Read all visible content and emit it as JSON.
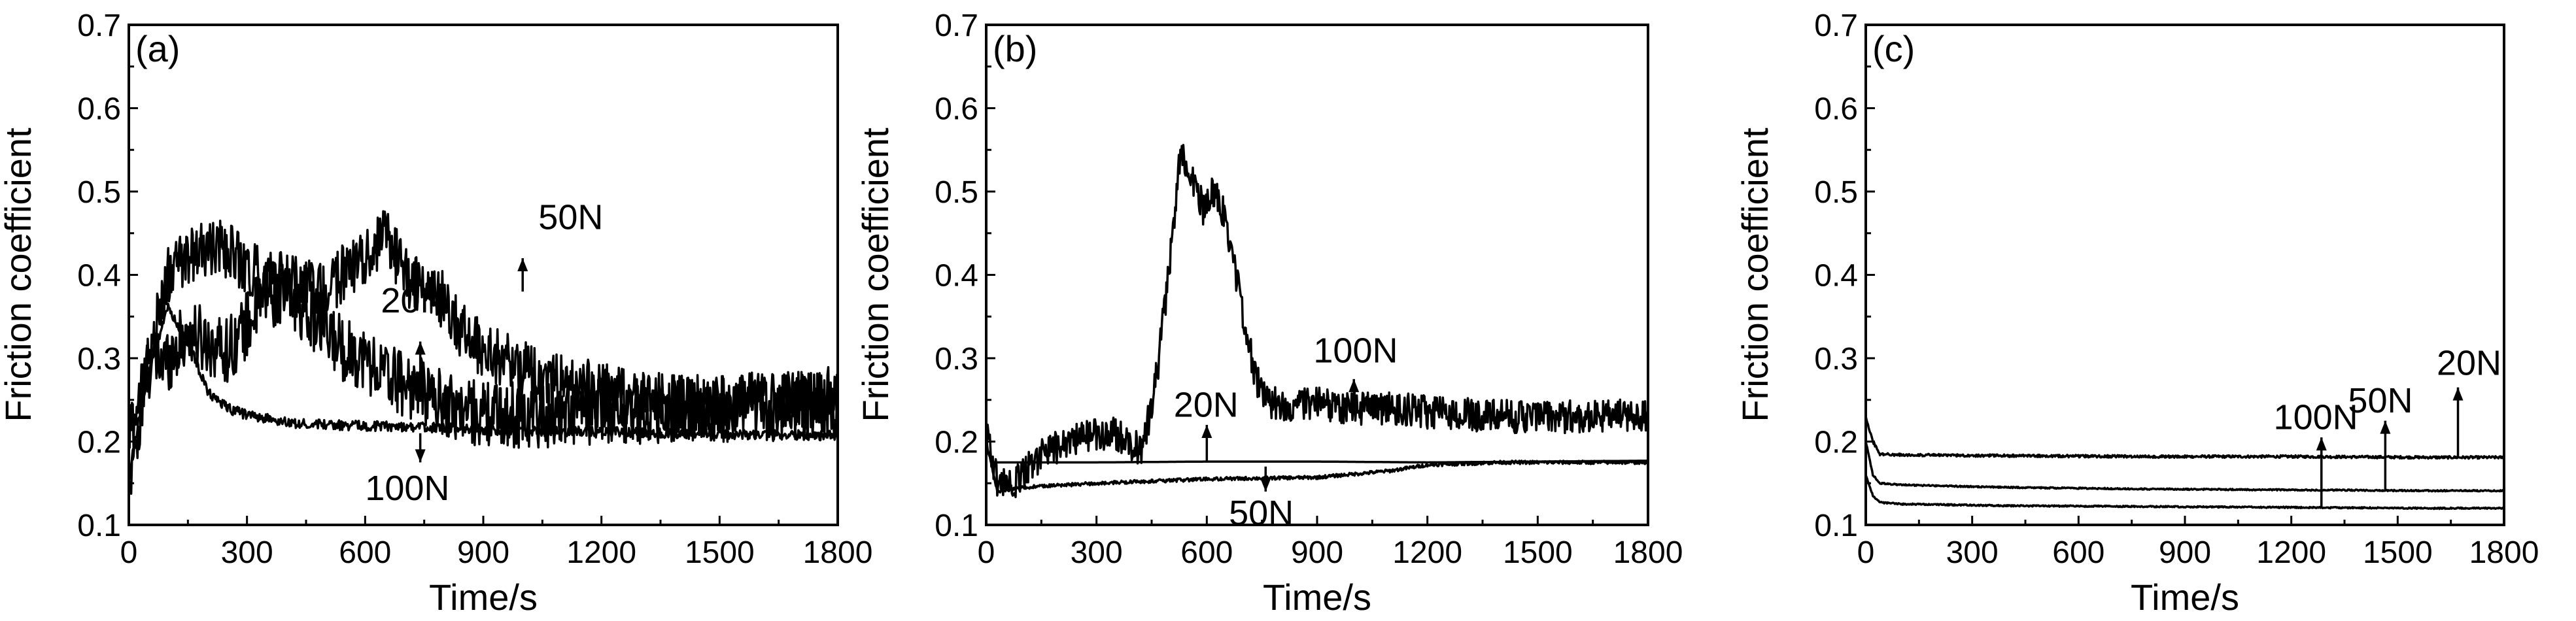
{
  "figure": {
    "background": "#ffffff",
    "line_color": "#000000"
  },
  "chart_data": [
    {
      "type": "line",
      "panel_label": "(a)",
      "xlabel": "Time/s",
      "ylabel": "Friction coefficient",
      "xlim": [
        0,
        1800
      ],
      "ylim": [
        0.1,
        0.7
      ],
      "xticks": [
        "0",
        "300",
        "600",
        "900",
        "1200",
        "1500",
        "1800"
      ],
      "yticks": [
        "0.1",
        "0.2",
        "0.3",
        "0.4",
        "0.5",
        "0.6",
        "0.7"
      ],
      "series": [
        {
          "label": "20N",
          "points": [
            [
              0,
              0.21
            ],
            [
              50,
              0.29
            ],
            [
              100,
              0.3
            ],
            [
              150,
              0.33
            ],
            [
              200,
              0.32
            ],
            [
              250,
              0.31
            ],
            [
              300,
              0.34
            ],
            [
              350,
              0.38
            ],
            [
              400,
              0.37
            ],
            [
              450,
              0.36
            ],
            [
              500,
              0.33
            ],
            [
              550,
              0.31
            ],
            [
              600,
              0.3
            ],
            [
              650,
              0.28
            ],
            [
              700,
              0.27
            ],
            [
              750,
              0.26
            ],
            [
              800,
              0.245
            ],
            [
              850,
              0.238
            ],
            [
              900,
              0.233
            ],
            [
              1000,
              0.232
            ],
            [
              1200,
              0.235
            ],
            [
              1400,
              0.238
            ],
            [
              1600,
              0.24
            ],
            [
              1800,
              0.243
            ]
          ],
          "noise": 0.04
        },
        {
          "label": "50N",
          "points": [
            [
              0,
              0.14
            ],
            [
              50,
              0.3
            ],
            [
              100,
              0.4
            ],
            [
              150,
              0.42
            ],
            [
              200,
              0.43
            ],
            [
              250,
              0.43
            ],
            [
              300,
              0.41
            ],
            [
              400,
              0.39
            ],
            [
              500,
              0.38
            ],
            [
              560,
              0.41
            ],
            [
              600,
              0.42
            ],
            [
              650,
              0.45
            ],
            [
              700,
              0.4
            ],
            [
              750,
              0.38
            ],
            [
              800,
              0.37
            ],
            [
              850,
              0.33
            ],
            [
              900,
              0.31
            ],
            [
              950,
              0.3
            ],
            [
              1000,
              0.29
            ],
            [
              1100,
              0.27
            ],
            [
              1200,
              0.26
            ],
            [
              1300,
              0.25
            ],
            [
              1400,
              0.245
            ],
            [
              1500,
              0.245
            ],
            [
              1600,
              0.25
            ],
            [
              1800,
              0.255
            ]
          ],
          "noise": 0.035
        },
        {
          "label": "100N",
          "points": [
            [
              0,
              0.15
            ],
            [
              30,
              0.24
            ],
            [
              60,
              0.3
            ],
            [
              100,
              0.36
            ],
            [
              150,
              0.32
            ],
            [
              200,
              0.26
            ],
            [
              250,
              0.24
            ],
            [
              300,
              0.232
            ],
            [
              400,
              0.223
            ],
            [
              500,
              0.22
            ],
            [
              700,
              0.218
            ],
            [
              1000,
              0.213
            ],
            [
              1400,
              0.21
            ],
            [
              1800,
              0.207
            ]
          ],
          "noise": 0.006
        }
      ],
      "annotations": [
        {
          "text": "50N",
          "arrow_x": 1000,
          "arrow_from_y": 0.38,
          "arrow_to_y": 0.42,
          "label_x": 1040,
          "label_y": 0.455
        },
        {
          "text": "20N",
          "arrow_x": 740,
          "arrow_from_y": 0.275,
          "arrow_to_y": 0.32,
          "label_x": 640,
          "label_y": 0.355
        },
        {
          "text": "100N",
          "arrow_x": 740,
          "arrow_from_y": 0.21,
          "arrow_to_y": 0.175,
          "label_x": 600,
          "label_y": 0.13
        }
      ]
    },
    {
      "type": "line",
      "panel_label": "(b)",
      "xlabel": "Time/s",
      "ylabel": "Friction coefficient",
      "xlim": [
        0,
        1800
      ],
      "ylim": [
        0.1,
        0.7
      ],
      "xticks": [
        "0",
        "300",
        "600",
        "900",
        "1200",
        "1500",
        "1800"
      ],
      "yticks": [
        "0.1",
        "0.2",
        "0.3",
        "0.4",
        "0.5",
        "0.6",
        "0.7"
      ],
      "series": [
        {
          "label": "20N",
          "points": [
            [
              0,
              0.19
            ],
            [
              20,
              0.175
            ],
            [
              100,
              0.175
            ],
            [
              300,
              0.175
            ],
            [
              600,
              0.176
            ],
            [
              900,
              0.176
            ],
            [
              1200,
              0.175
            ],
            [
              1500,
              0.176
            ],
            [
              1800,
              0.177
            ]
          ],
          "noise": 0.0
        },
        {
          "label": "50N",
          "points": [
            [
              0,
              0.2
            ],
            [
              30,
              0.14
            ],
            [
              100,
              0.145
            ],
            [
              300,
              0.15
            ],
            [
              600,
              0.155
            ],
            [
              900,
              0.157
            ],
            [
              1100,
              0.165
            ],
            [
              1200,
              0.172
            ],
            [
              1400,
              0.175
            ],
            [
              1800,
              0.175
            ]
          ],
          "noise": 0.002
        },
        {
          "label": "100N",
          "points": [
            [
              0,
              0.22
            ],
            [
              30,
              0.15
            ],
            [
              80,
              0.15
            ],
            [
              150,
              0.185
            ],
            [
              250,
              0.205
            ],
            [
              350,
              0.21
            ],
            [
              420,
              0.19
            ],
            [
              450,
              0.24
            ],
            [
              470,
              0.3
            ],
            [
              500,
              0.42
            ],
            [
              530,
              0.55
            ],
            [
              560,
              0.52
            ],
            [
              590,
              0.48
            ],
            [
              620,
              0.5
            ],
            [
              650,
              0.47
            ],
            [
              680,
              0.4
            ],
            [
              700,
              0.35
            ],
            [
              730,
              0.28
            ],
            [
              760,
              0.25
            ],
            [
              800,
              0.245
            ],
            [
              900,
              0.245
            ],
            [
              1000,
              0.24
            ],
            [
              1100,
              0.24
            ],
            [
              1200,
              0.235
            ],
            [
              1400,
              0.23
            ],
            [
              1600,
              0.23
            ],
            [
              1800,
              0.232
            ]
          ],
          "noise": 0.02
        }
      ],
      "annotations": [
        {
          "text": "100N",
          "arrow_x": 1000,
          "arrow_from_y": 0.24,
          "arrow_to_y": 0.275,
          "label_x": 890,
          "label_y": 0.295
        },
        {
          "text": "20N",
          "arrow_x": 600,
          "arrow_from_y": 0.175,
          "arrow_to_y": 0.22,
          "label_x": 510,
          "label_y": 0.23
        },
        {
          "text": "50N",
          "arrow_x": 760,
          "arrow_from_y": 0.17,
          "arrow_to_y": 0.14,
          "label_x": 660,
          "label_y": 0.1
        }
      ]
    },
    {
      "type": "line",
      "panel_label": "(c)",
      "xlabel": "Time/s",
      "ylabel": "Friction coefficient",
      "xlim": [
        0,
        1800
      ],
      "ylim": [
        0.1,
        0.7
      ],
      "xticks": [
        "0",
        "300",
        "600",
        "900",
        "1200",
        "1500",
        "1800"
      ],
      "yticks": [
        "0.1",
        "0.2",
        "0.3",
        "0.4",
        "0.5",
        "0.6",
        "0.7"
      ],
      "series": [
        {
          "label": "100N",
          "points": [
            [
              0,
              0.23
            ],
            [
              20,
              0.2
            ],
            [
              40,
              0.185
            ],
            [
              100,
              0.184
            ],
            [
              400,
              0.183
            ],
            [
              800,
              0.182
            ],
            [
              1200,
              0.182
            ],
            [
              1600,
              0.181
            ],
            [
              1800,
              0.181
            ]
          ],
          "noise": 0.0015
        },
        {
          "label": "50N",
          "points": [
            [
              0,
              0.2
            ],
            [
              20,
              0.16
            ],
            [
              40,
              0.15
            ],
            [
              100,
              0.148
            ],
            [
              400,
              0.145
            ],
            [
              800,
              0.143
            ],
            [
              1200,
              0.142
            ],
            [
              1600,
              0.141
            ],
            [
              1800,
              0.141
            ]
          ],
          "noise": 0.0008
        },
        {
          "label": "20N",
          "points": [
            [
              0,
              0.16
            ],
            [
              20,
              0.135
            ],
            [
              40,
              0.127
            ],
            [
              100,
              0.125
            ],
            [
              400,
              0.123
            ],
            [
              800,
              0.122
            ],
            [
              1200,
              0.121
            ],
            [
              1600,
              0.12
            ],
            [
              1800,
              0.12
            ]
          ],
          "noise": 0.0008
        }
      ],
      "annotations": [
        {
          "text": "100N",
          "arrow_x": 1285,
          "arrow_from_y": 0.12,
          "arrow_to_y": 0.205,
          "label_x": 1150,
          "label_y": 0.215
        },
        {
          "text": "50N",
          "arrow_x": 1465,
          "arrow_from_y": 0.14,
          "arrow_to_y": 0.225,
          "label_x": 1360,
          "label_y": 0.235
        },
        {
          "text": "20N",
          "arrow_x": 1670,
          "arrow_from_y": 0.18,
          "arrow_to_y": 0.265,
          "label_x": 1610,
          "label_y": 0.28
        }
      ]
    }
  ]
}
